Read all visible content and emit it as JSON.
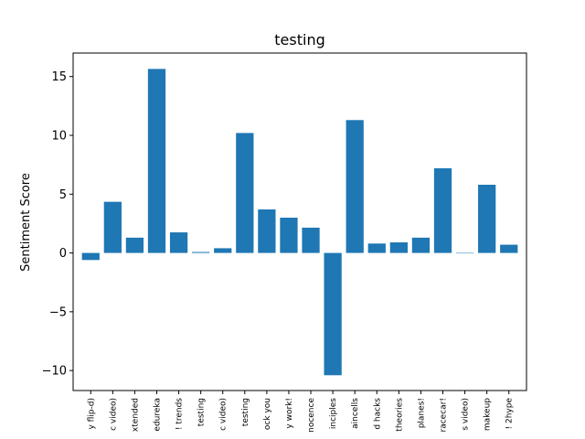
{
  "chart_data": {
    "type": "bar",
    "title": "testing",
    "xlabel": "",
    "ylabel": "Sentiment Score",
    "ylim": [
      -11.7,
      17.0
    ],
    "yticks": [
      -10,
      -5,
      0,
      5,
      10,
      15
    ],
    "ytick_labels": [
      "−10",
      "−5",
      "0",
      "5",
      "10",
      "15"
    ],
    "grid": false,
    "color": "#1f77b4",
    "categories": [
      "y flip-d)",
      "c video)",
      "xtended",
      "edureka",
      "! trends",
      "testing",
      "c video)",
      "testing",
      "ock you",
      "y work!",
      "nocence",
      "inciples",
      "aincells",
      "d hacks",
      "theories",
      "planes!",
      "racecar!",
      "s video)",
      "makeup",
      "! 2hype"
    ],
    "values": [
      -0.6,
      4.35,
      1.3,
      15.65,
      1.75,
      0.08,
      0.4,
      10.2,
      3.7,
      3.0,
      2.15,
      -10.4,
      11.3,
      0.8,
      0.9,
      1.3,
      7.2,
      0.0,
      5.8,
      0.7
    ]
  }
}
